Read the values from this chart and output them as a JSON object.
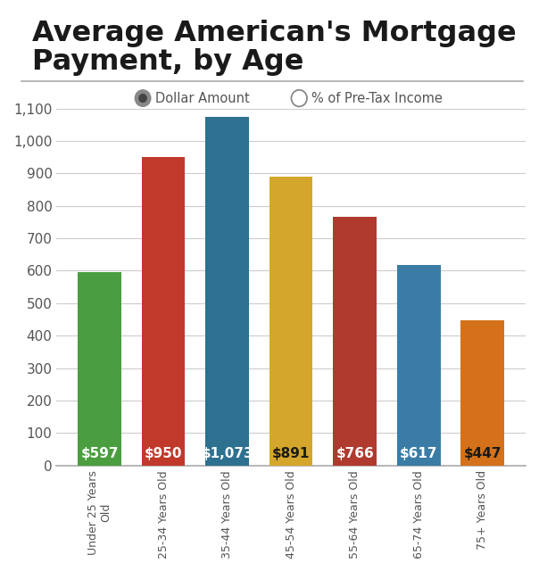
{
  "title_line1": "Average American's Mortgage",
  "title_line2": "Payment, by Age",
  "categories": [
    "Under 25 Years\nOld",
    "25-34 Years Old",
    "35-44 Years Old",
    "45-54 Years Old",
    "55-64 Years Old",
    "65-74 Years Old",
    "75+ Years Old"
  ],
  "values": [
    597,
    950,
    1073,
    891,
    766,
    617,
    447
  ],
  "labels": [
    "$597",
    "$950",
    "$1,073",
    "$891",
    "$766",
    "$617",
    "$447"
  ],
  "bar_colors": [
    "#4a9e3f",
    "#c0392b",
    "#2e7090",
    "#d4a72c",
    "#b03a2e",
    "#3a7ca5",
    "#d4711a"
  ],
  "bar_label_colors": [
    "#ffffff",
    "#ffffff",
    "#ffffff",
    "#1a1a1a",
    "#ffffff",
    "#ffffff",
    "#1a1a1a"
  ],
  "ylim": [
    0,
    1100
  ],
  "yticks": [
    0,
    100,
    200,
    300,
    400,
    500,
    600,
    700,
    800,
    900,
    1000,
    1100
  ],
  "background_color": "#ffffff",
  "title_fontsize": 23,
  "label_fontsize": 11,
  "tick_fontsize": 11,
  "xtick_fontsize": 9,
  "legend_active": "Dollar Amount",
  "legend_inactive": "% of Pre-Tax Income",
  "grid_color": "#cccccc",
  "spine_color": "#aaaaaa",
  "text_color": "#555555"
}
